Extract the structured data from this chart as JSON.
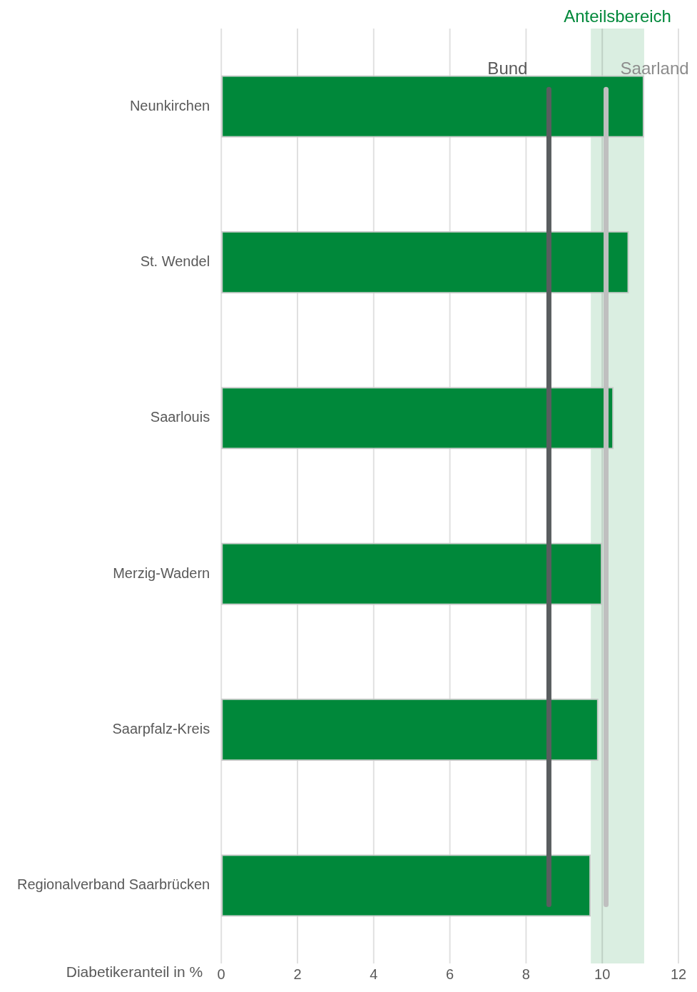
{
  "chart_data": {
    "type": "bar",
    "orientation": "horizontal",
    "xlabel": "Diabetikeranteil in %",
    "categories": [
      "Neunkirchen",
      "St. Wendel",
      "Saarlouis",
      "Merzig-Wadern",
      "Saarpfalz-Kreis",
      "Regionalverband Saarbrücken"
    ],
    "values": [
      11.1,
      10.7,
      10.3,
      10.0,
      9.9,
      9.7
    ],
    "color": "#00883a",
    "xlim": [
      0,
      12
    ],
    "xticks": [
      0,
      2,
      4,
      6,
      8,
      10,
      12
    ],
    "grid": "x",
    "legend": false,
    "bands": [
      {
        "axis": "x",
        "from": 9.7,
        "to": 11.1,
        "label": "Anteilsbereich",
        "color": "#daeee1"
      }
    ],
    "ref_lines": [
      {
        "axis": "x",
        "value": 8.6,
        "label": "Bund",
        "color": "#595d5f"
      },
      {
        "axis": "x",
        "value": 10.1,
        "label": "Saarland",
        "color": "#bfbfbf"
      }
    ]
  }
}
